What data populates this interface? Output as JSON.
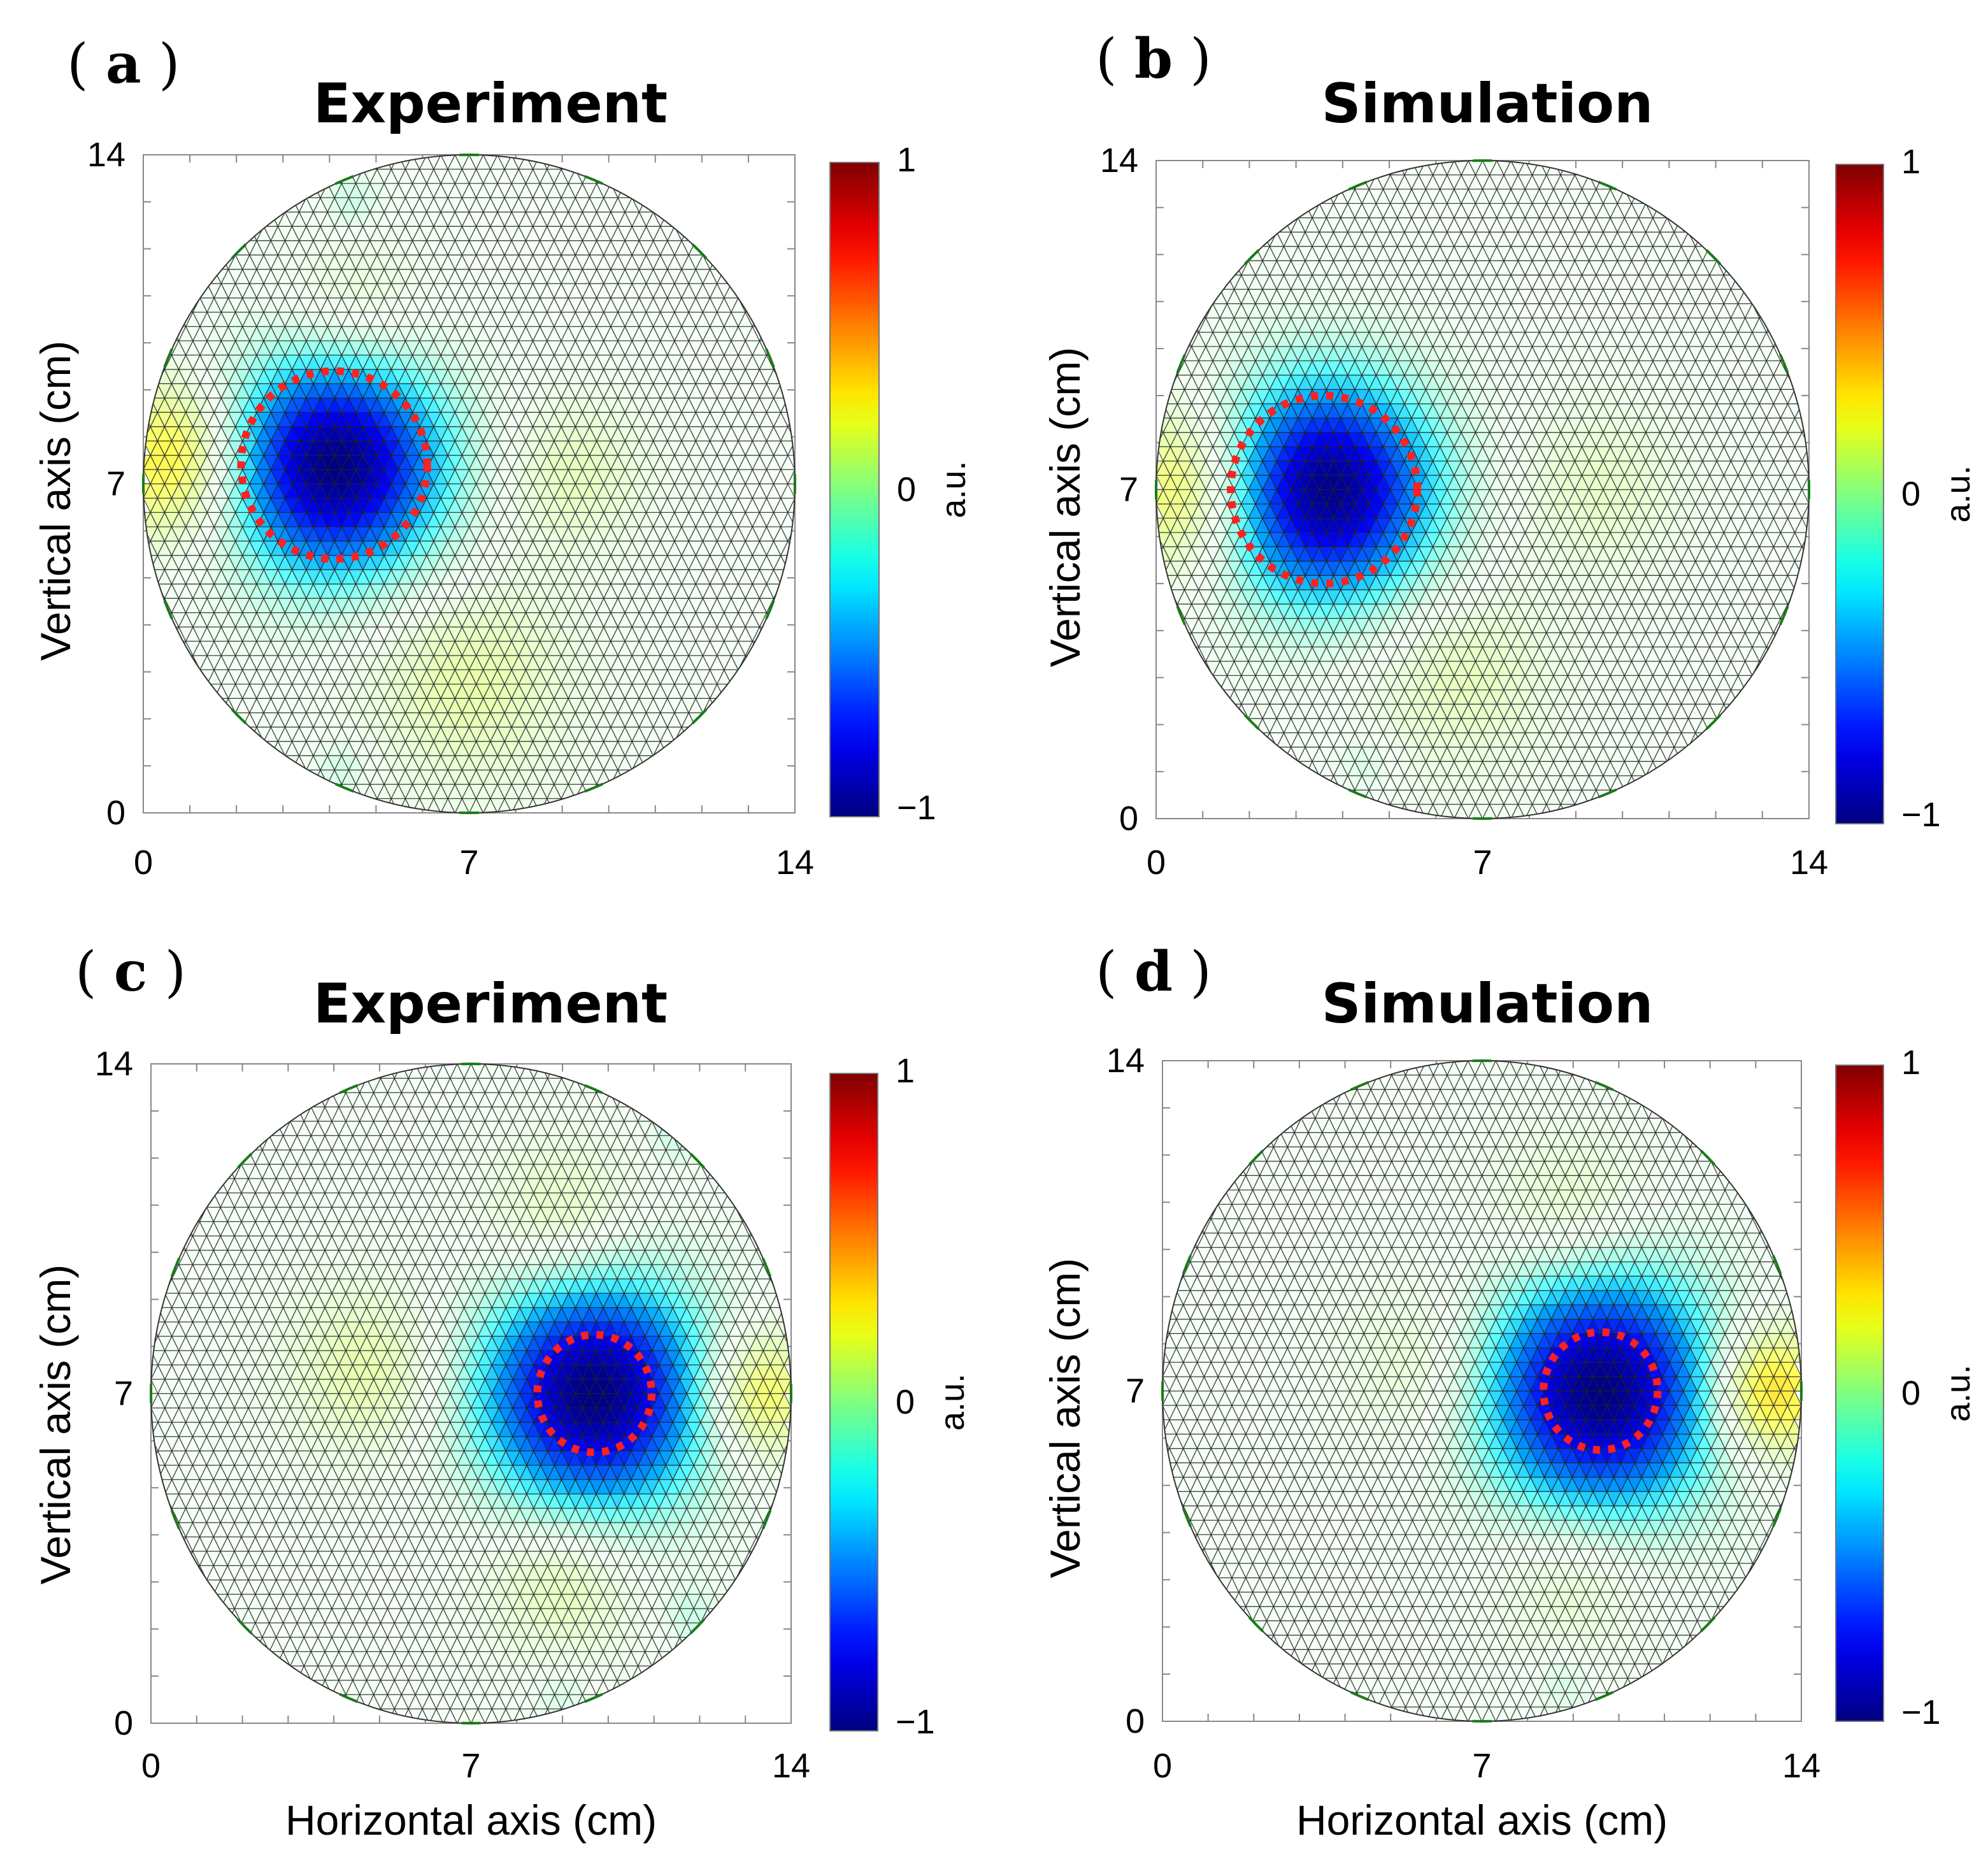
{
  "figure": {
    "panels": [
      {
        "id": "a",
        "label_open": "(",
        "letter": "a",
        "label_close": ")",
        "title": "Experiment"
      },
      {
        "id": "b",
        "label_open": "(",
        "letter": "b",
        "label_close": ")",
        "title": "Simulation"
      },
      {
        "id": "c",
        "label_open": "(",
        "letter": "c",
        "label_close": ")",
        "title": "Experiment"
      },
      {
        "id": "d",
        "label_open": "(",
        "letter": "d",
        "label_close": ")",
        "title": "Simulation"
      }
    ],
    "ylabel": "Vertical axis (cm)",
    "xlabel": "Horizontal axis (cm)",
    "x_ticks": [
      "0",
      "7",
      "14"
    ],
    "y_ticks": [
      "0",
      "7",
      "14"
    ],
    "colorbar": {
      "ticks": [
        "1",
        "0",
        "−1"
      ],
      "unit": "a.u."
    }
  },
  "chart_data": [
    {
      "type": "heatmap",
      "panel": "a",
      "title": "Experiment",
      "xlabel": "",
      "ylabel": "Vertical axis (cm)",
      "xlim": [
        0,
        14
      ],
      "ylim": [
        0,
        14
      ],
      "domain": {
        "shape": "circle",
        "center": [
          7,
          7
        ],
        "radius": 7
      },
      "colorbar": {
        "range": [
          -1,
          1
        ],
        "label": "a.u."
      },
      "features": [
        {
          "kind": "minimum",
          "center": [
            4.1,
            7.4
          ],
          "radius": 2.1,
          "value": -1.0
        },
        {
          "kind": "positive",
          "center": [
            0.8,
            7.5
          ],
          "radius": 1.7,
          "value": 0.35
        },
        {
          "kind": "positive",
          "center": [
            9.2,
            7.2
          ],
          "radius": 1.6,
          "value": 0.12
        },
        {
          "kind": "positive",
          "center": [
            7.0,
            2.8
          ],
          "radius": 2.2,
          "value": 0.15
        },
        {
          "kind": "positive",
          "center": [
            4.5,
            10.5
          ],
          "radius": 1.6,
          "value": 0.12
        },
        {
          "kind": "negative",
          "center": [
            4.3,
            1.0
          ],
          "radius": 0.6,
          "value": -0.1
        },
        {
          "kind": "negative",
          "center": [
            4.5,
            13.0
          ],
          "radius": 0.6,
          "value": -0.1
        }
      ],
      "marker": {
        "center": [
          4.1,
          7.4
        ],
        "radius": 2.0
      }
    },
    {
      "type": "heatmap",
      "panel": "b",
      "title": "Simulation",
      "xlabel": "",
      "ylabel": "Vertical axis (cm)",
      "xlim": [
        0,
        14
      ],
      "ylim": [
        0,
        14
      ],
      "domain": {
        "shape": "circle",
        "center": [
          7,
          7
        ],
        "radius": 7
      },
      "colorbar": {
        "range": [
          -1,
          1
        ],
        "label": "a.u."
      },
      "features": [
        {
          "kind": "minimum",
          "center": [
            3.6,
            7.0
          ],
          "radius": 2.1,
          "value": -1.0
        },
        {
          "kind": "positive",
          "center": [
            0.9,
            7.0
          ],
          "radius": 1.8,
          "value": 0.35
        },
        {
          "kind": "positive",
          "center": [
            9.5,
            7.0
          ],
          "radius": 1.8,
          "value": 0.1
        },
        {
          "kind": "positive",
          "center": [
            6.5,
            3.0
          ],
          "radius": 2.0,
          "value": 0.12
        },
        {
          "kind": "negative",
          "center": [
            4.5,
            1.2
          ],
          "radius": 0.6,
          "value": -0.08
        }
      ],
      "marker": {
        "center": [
          3.6,
          7.0
        ],
        "radius": 2.0
      }
    },
    {
      "type": "heatmap",
      "panel": "c",
      "title": "Experiment",
      "xlabel": "Horizontal axis (cm)",
      "ylabel": "Vertical axis (cm)",
      "xlim": [
        0,
        14
      ],
      "ylim": [
        0,
        14
      ],
      "domain": {
        "shape": "circle",
        "center": [
          7,
          7
        ],
        "radius": 7
      },
      "colorbar": {
        "range": [
          -1,
          1
        ],
        "label": "a.u."
      },
      "features": [
        {
          "kind": "minimum",
          "center": [
            9.7,
            7.0
          ],
          "radius": 2.2,
          "value": -1.0
        },
        {
          "kind": "positive",
          "center": [
            13.2,
            7.0
          ],
          "radius": 1.4,
          "value": 0.3
        },
        {
          "kind": "positive",
          "center": [
            4.8,
            7.5
          ],
          "radius": 1.8,
          "value": 0.15
        },
        {
          "kind": "positive",
          "center": [
            9.0,
            10.5
          ],
          "radius": 1.7,
          "value": 0.15
        },
        {
          "kind": "positive",
          "center": [
            9.0,
            3.2
          ],
          "radius": 1.7,
          "value": 0.15
        },
        {
          "kind": "negative",
          "center": [
            11.5,
            12.5
          ],
          "radius": 0.6,
          "value": -0.1
        },
        {
          "kind": "negative",
          "center": [
            11.8,
            2.3
          ],
          "radius": 0.6,
          "value": -0.1
        },
        {
          "kind": "negative",
          "center": [
            9.0,
            0.6
          ],
          "radius": 0.6,
          "value": -0.08
        }
      ],
      "marker": {
        "center": [
          9.7,
          7.0
        ],
        "radius": 1.25
      }
    },
    {
      "type": "heatmap",
      "panel": "d",
      "title": "Simulation",
      "xlabel": "Horizontal axis (cm)",
      "ylabel": "Vertical axis (cm)",
      "xlim": [
        0,
        14
      ],
      "ylim": [
        0,
        14
      ],
      "domain": {
        "shape": "circle",
        "center": [
          7,
          7
        ],
        "radius": 7
      },
      "colorbar": {
        "range": [
          -1,
          1
        ],
        "label": "a.u."
      },
      "features": [
        {
          "kind": "minimum",
          "center": [
            9.6,
            7.0
          ],
          "radius": 2.3,
          "value": -1.0
        },
        {
          "kind": "positive",
          "center": [
            13.2,
            7.0
          ],
          "radius": 1.4,
          "value": 0.4
        },
        {
          "kind": "positive",
          "center": [
            6.0,
            7.5
          ],
          "radius": 1.8,
          "value": 0.12
        },
        {
          "kind": "positive",
          "center": [
            9.0,
            10.5
          ],
          "radius": 1.8,
          "value": 0.14
        },
        {
          "kind": "positive",
          "center": [
            9.0,
            3.3
          ],
          "radius": 1.7,
          "value": 0.12
        },
        {
          "kind": "negative",
          "center": [
            8.8,
            0.8
          ],
          "radius": 0.6,
          "value": -0.08
        }
      ],
      "marker": {
        "center": [
          9.6,
          7.0
        ],
        "radius": 1.25
      }
    }
  ]
}
